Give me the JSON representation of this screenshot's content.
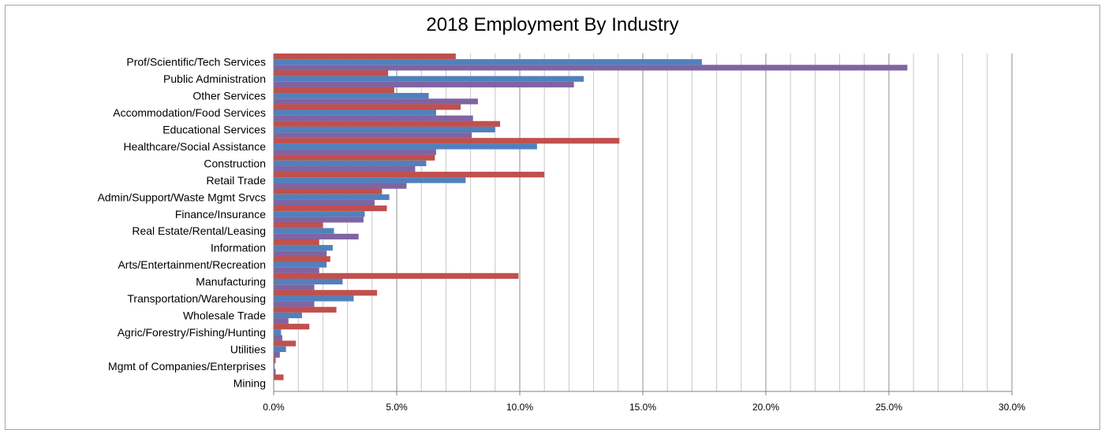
{
  "chart_data": {
    "type": "bar",
    "orientation": "horizontal",
    "title": "2018 Employment By Industry",
    "xlim": [
      0,
      30
    ],
    "ticks": [
      "0.0%",
      "5.0%",
      "10.0%",
      "15.0%",
      "20.0%",
      "25.0%",
      "30.0%"
    ],
    "grid": true,
    "categories": [
      "Prof/Scientific/Tech Services",
      "Public Administration",
      "Other Services",
      "Accommodation/Food Services",
      "Educational Services",
      "Healthcare/Social Assistance",
      "Construction",
      "Retail Trade",
      "Admin/Support/Waste Mgmt Srvcs",
      "Finance/Insurance",
      "Real Estate/Rental/Leasing",
      "Information",
      "Arts/Entertainment/Recreation",
      "Manufacturing",
      "Transportation/Warehousing",
      "Wholesale Trade",
      "Agric/Forestry/Fishing/Hunting",
      "Utilities",
      "Mgmt of Companies/Enterprises",
      "Mining"
    ],
    "series": [
      {
        "color": "#c0504d",
        "values": [
          7.4,
          4.65,
          4.9,
          7.6,
          9.2,
          14.05,
          6.55,
          11.0,
          4.4,
          4.6,
          2.0,
          1.85,
          2.3,
          9.95,
          4.2,
          2.55,
          1.45,
          0.9,
          0.08,
          0.4
        ]
      },
      {
        "color": "#4f81bd",
        "values": [
          17.4,
          12.6,
          6.3,
          6.6,
          9.0,
          10.7,
          6.2,
          7.8,
          4.7,
          3.7,
          2.45,
          2.4,
          2.15,
          2.8,
          3.25,
          1.15,
          0.3,
          0.5,
          0.04,
          0.0
        ]
      },
      {
        "color": "#8064a2",
        "values": [
          25.75,
          12.2,
          8.3,
          8.1,
          8.05,
          6.6,
          5.75,
          5.4,
          4.1,
          3.65,
          3.45,
          2.15,
          1.85,
          1.65,
          1.65,
          0.6,
          0.35,
          0.25,
          0.08,
          0.0
        ]
      }
    ]
  }
}
